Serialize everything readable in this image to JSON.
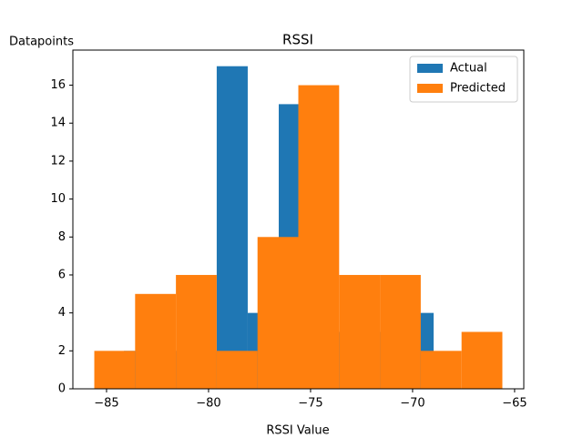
{
  "chart_data": {
    "type": "histogram",
    "title": "RSSI",
    "x_label": "RSSI Value",
    "y_label": "Datapoints",
    "series": [
      {
        "name": "Actual",
        "color": "#1f77b4",
        "bins": [
          -84.15,
          -82.63,
          -81.11,
          -79.6,
          -78.08,
          -76.56,
          -75.04,
          -73.53,
          -72.01,
          -70.49,
          -68.97
        ],
        "values": [
          2,
          2,
          2,
          17,
          4,
          15,
          3,
          4,
          3,
          4
        ]
      },
      {
        "name": "Predicted",
        "color": "#ff7f0e",
        "bins": [
          -85.6,
          -83.6,
          -81.6,
          -79.6,
          -77.6,
          -75.6,
          -73.6,
          -71.6,
          -69.6,
          -67.6,
          -65.6
        ],
        "values": [
          2,
          5,
          6,
          2,
          8,
          16,
          6,
          6,
          2,
          3
        ]
      }
    ],
    "xlim": [
      -86.65,
      -64.55
    ],
    "ylim": [
      0,
      17.85
    ],
    "xticks": [
      {
        "value": -85,
        "label": "−85"
      },
      {
        "value": -80,
        "label": "−80"
      },
      {
        "value": -75,
        "label": "−75"
      },
      {
        "value": -70,
        "label": "−70"
      },
      {
        "value": -65,
        "label": "−65"
      }
    ],
    "yticks": [
      0,
      2,
      4,
      6,
      8,
      10,
      12,
      14,
      16
    ],
    "legend": "upper right"
  }
}
